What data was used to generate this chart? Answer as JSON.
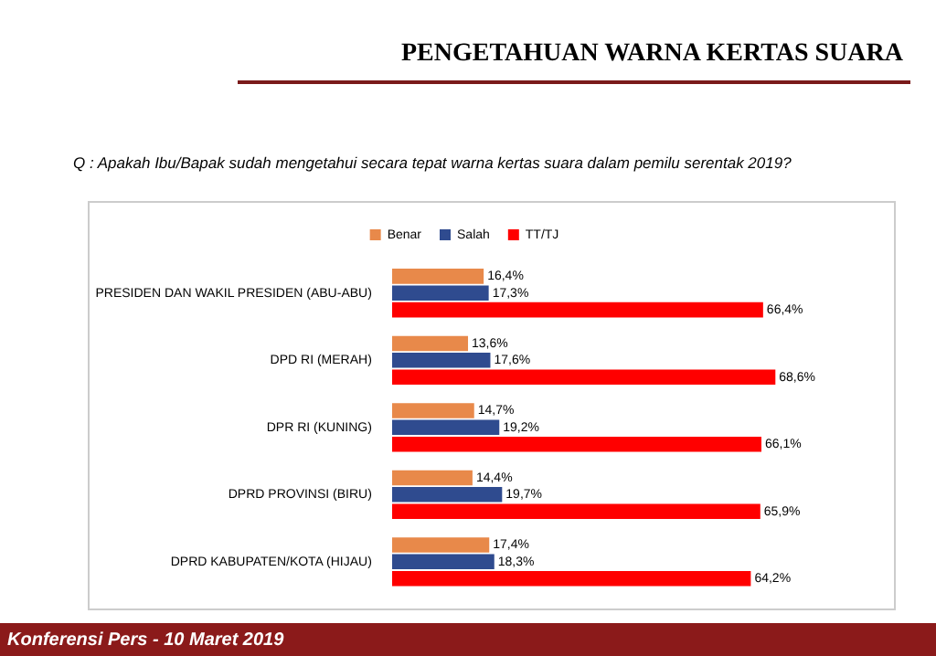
{
  "chart_data": {
    "type": "bar",
    "orientation": "horizontal",
    "title": "PENGETAHUAN WARNA KERTAS SUARA",
    "subtitle": "Q : Apakah Ibu/Bapak sudah mengetahui secara tepat  warna kertas suara dalam pemilu  serentak 2019?",
    "categories": [
      "PRESIDEN DAN WAKIL PRESIDEN (ABU-ABU)",
      "DPD RI (MERAH)",
      "DPR RI (KUNING)",
      "DPRD PROVINSI (BIRU)",
      "DPRD KABUPATEN/KOTA (HIJAU)"
    ],
    "legend": "top",
    "series": [
      {
        "name": "Benar",
        "color": "#e8894a",
        "values": [
          16.4,
          13.6,
          14.7,
          14.4,
          17.4
        ],
        "value_labels": [
          "16,4%",
          "13,6%",
          "14,7%",
          "14,4%",
          "17,4%"
        ]
      },
      {
        "name": "Salah",
        "color": "#2f4b8f",
        "values": [
          17.3,
          17.6,
          19.2,
          19.7,
          18.3
        ],
        "value_labels": [
          "17,3%",
          "17,6%",
          "19,2%",
          "19,7%",
          "18,3%"
        ]
      },
      {
        "name": "TT/TJ",
        "color": "#ff0000",
        "values": [
          66.4,
          68.6,
          66.1,
          65.9,
          64.2
        ],
        "value_labels": [
          "66,4%",
          "68,6%",
          "66,1%",
          "65,9%",
          "64,2%"
        ]
      }
    ],
    "annotations": [
      "Konferensi Pers - 10 Maret 2019"
    ]
  }
}
